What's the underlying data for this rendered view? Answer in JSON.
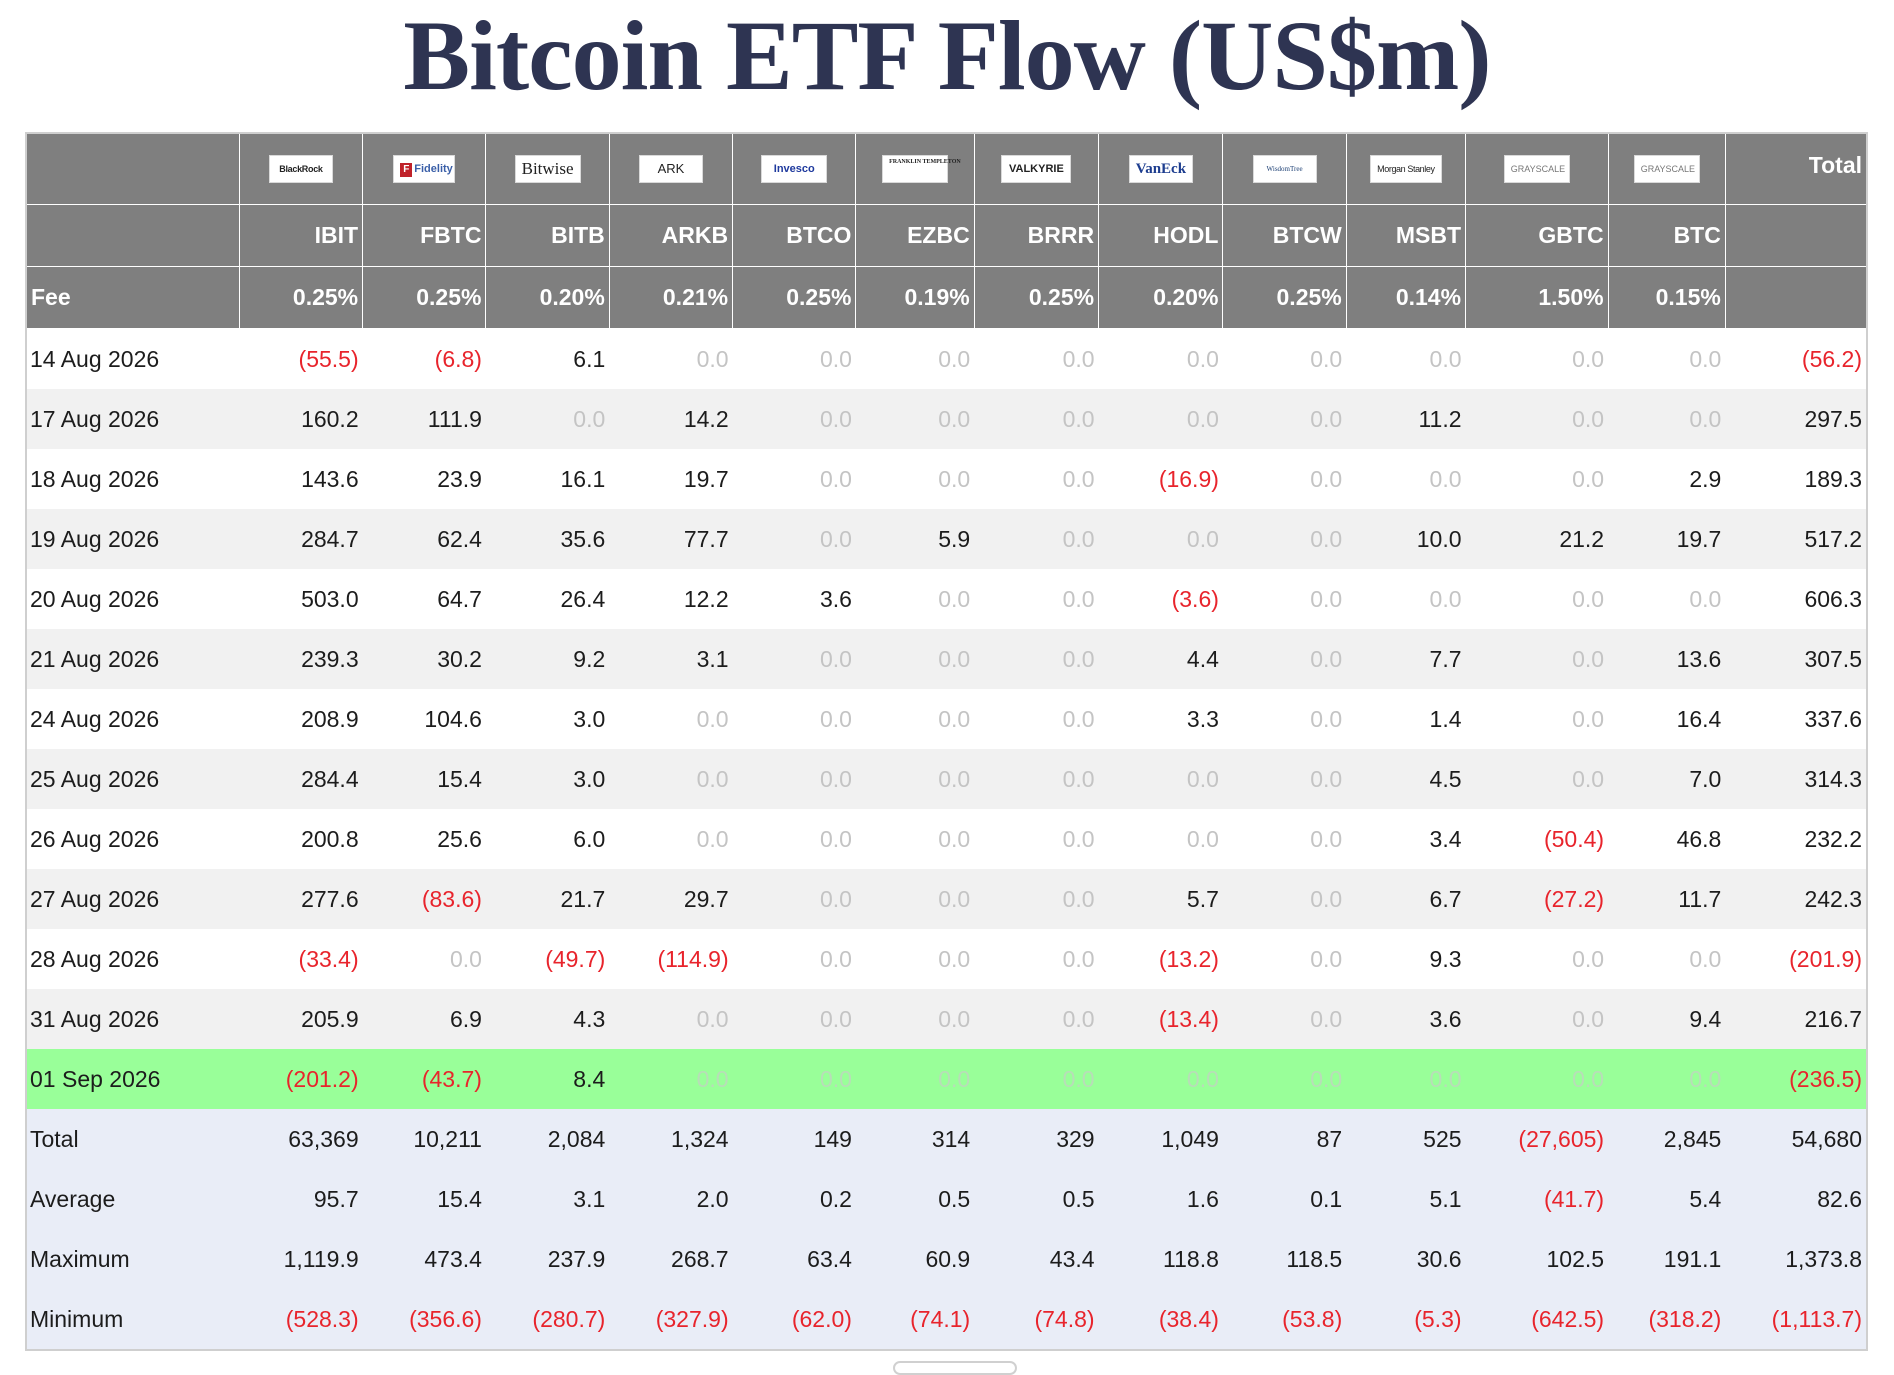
{
  "title": "Bitcoin ETF Flow (US$m)",
  "header": {
    "logos": [
      {
        "key": "blackrock",
        "label": "BlackRock",
        "icon": "blackrock-logo"
      },
      {
        "key": "fidelity",
        "label": "Fidelity",
        "icon": "fidelity-logo"
      },
      {
        "key": "bitwise",
        "label": "Bitwise",
        "icon": "bitwise-logo"
      },
      {
        "key": "ark",
        "label": "ARK",
        "icon": "ark-logo"
      },
      {
        "key": "invesco",
        "label": "Invesco",
        "icon": "invesco-logo"
      },
      {
        "key": "franklin",
        "label": "FRANKLIN TEMPLETON",
        "icon": "franklin-logo"
      },
      {
        "key": "valkyrie",
        "label": "VALKYRIE",
        "icon": "valkyrie-logo"
      },
      {
        "key": "vaneck",
        "label": "VanEck",
        "icon": "vaneck-logo"
      },
      {
        "key": "wisdom",
        "label": "WisdomTree",
        "icon": "wisdomtree-logo"
      },
      {
        "key": "morgan",
        "label": "Morgan Stanley",
        "icon": "morganstanley-logo"
      },
      {
        "key": "grayscale",
        "label": "GRAYSCALE",
        "icon": "grayscale-logo"
      },
      {
        "key": "grayscale",
        "label": "GRAYSCALE",
        "icon": "grayscale-logo"
      }
    ],
    "total_label": "Total",
    "tickers": [
      "IBIT",
      "FBTC",
      "BITB",
      "ARKB",
      "BTCO",
      "EZBC",
      "BRRR",
      "HODL",
      "BTCW",
      "MSBT",
      "GBTC",
      "BTC"
    ],
    "fee_label": "Fee",
    "fees": [
      "0.25%",
      "0.25%",
      "0.20%",
      "0.21%",
      "0.25%",
      "0.19%",
      "0.25%",
      "0.20%",
      "0.25%",
      "0.14%",
      "1.50%",
      "0.15%"
    ]
  },
  "rows": [
    {
      "date": "14 Aug 2026",
      "values": [
        "(55.5)",
        "(6.8)",
        "6.1",
        "0.0",
        "0.0",
        "0.0",
        "0.0",
        "0.0",
        "0.0",
        "0.0",
        "0.0",
        "0.0"
      ],
      "total": "(56.2)"
    },
    {
      "date": "17 Aug 2026",
      "values": [
        "160.2",
        "111.9",
        "0.0",
        "14.2",
        "0.0",
        "0.0",
        "0.0",
        "0.0",
        "0.0",
        "11.2",
        "0.0",
        "0.0"
      ],
      "total": "297.5"
    },
    {
      "date": "18 Aug 2026",
      "values": [
        "143.6",
        "23.9",
        "16.1",
        "19.7",
        "0.0",
        "0.0",
        "0.0",
        "(16.9)",
        "0.0",
        "0.0",
        "0.0",
        "2.9"
      ],
      "total": "189.3"
    },
    {
      "date": "19 Aug 2026",
      "values": [
        "284.7",
        "62.4",
        "35.6",
        "77.7",
        "0.0",
        "5.9",
        "0.0",
        "0.0",
        "0.0",
        "10.0",
        "21.2",
        "19.7"
      ],
      "total": "517.2"
    },
    {
      "date": "20 Aug 2026",
      "values": [
        "503.0",
        "64.7",
        "26.4",
        "12.2",
        "3.6",
        "0.0",
        "0.0",
        "(3.6)",
        "0.0",
        "0.0",
        "0.0",
        "0.0"
      ],
      "total": "606.3"
    },
    {
      "date": "21 Aug 2026",
      "values": [
        "239.3",
        "30.2",
        "9.2",
        "3.1",
        "0.0",
        "0.0",
        "0.0",
        "4.4",
        "0.0",
        "7.7",
        "0.0",
        "13.6"
      ],
      "total": "307.5"
    },
    {
      "date": "24 Aug 2026",
      "values": [
        "208.9",
        "104.6",
        "3.0",
        "0.0",
        "0.0",
        "0.0",
        "0.0",
        "3.3",
        "0.0",
        "1.4",
        "0.0",
        "16.4"
      ],
      "total": "337.6"
    },
    {
      "date": "25 Aug 2026",
      "values": [
        "284.4",
        "15.4",
        "3.0",
        "0.0",
        "0.0",
        "0.0",
        "0.0",
        "0.0",
        "0.0",
        "4.5",
        "0.0",
        "7.0"
      ],
      "total": "314.3"
    },
    {
      "date": "26 Aug 2026",
      "values": [
        "200.8",
        "25.6",
        "6.0",
        "0.0",
        "0.0",
        "0.0",
        "0.0",
        "0.0",
        "0.0",
        "3.4",
        "(50.4)",
        "46.8"
      ],
      "total": "232.2"
    },
    {
      "date": "27 Aug 2026",
      "values": [
        "277.6",
        "(83.6)",
        "21.7",
        "29.7",
        "0.0",
        "0.0",
        "0.0",
        "5.7",
        "0.0",
        "6.7",
        "(27.2)",
        "11.7"
      ],
      "total": "242.3"
    },
    {
      "date": "28 Aug 2026",
      "values": [
        "(33.4)",
        "0.0",
        "(49.7)",
        "(114.9)",
        "0.0",
        "0.0",
        "0.0",
        "(13.2)",
        "0.0",
        "9.3",
        "0.0",
        "0.0"
      ],
      "total": "(201.9)"
    },
    {
      "date": "31 Aug 2026",
      "values": [
        "205.9",
        "6.9",
        "4.3",
        "0.0",
        "0.0",
        "0.0",
        "0.0",
        "(13.4)",
        "0.0",
        "3.6",
        "0.0",
        "9.4"
      ],
      "total": "216.7"
    },
    {
      "date": "01 Sep 2026",
      "values": [
        "(201.2)",
        "(43.7)",
        "8.4",
        "0.0",
        "0.0",
        "0.0",
        "0.0",
        "0.0",
        "0.0",
        "0.0",
        "0.0",
        "0.0"
      ],
      "total": "(236.5)",
      "highlight": true
    }
  ],
  "summary": [
    {
      "label": "Total",
      "values": [
        "63,369",
        "10,211",
        "2,084",
        "1,324",
        "149",
        "314",
        "329",
        "1,049",
        "87",
        "525",
        "(27,605)",
        "2,845"
      ],
      "total": "54,680"
    },
    {
      "label": "Average",
      "values": [
        "95.7",
        "15.4",
        "3.1",
        "2.0",
        "0.2",
        "0.5",
        "0.5",
        "1.6",
        "0.1",
        "5.1",
        "(41.7)",
        "5.4"
      ],
      "total": "82.6"
    },
    {
      "label": "Maximum",
      "values": [
        "1,119.9",
        "473.4",
        "237.9",
        "268.7",
        "63.4",
        "60.9",
        "43.4",
        "118.8",
        "118.5",
        "30.6",
        "102.5",
        "191.1"
      ],
      "total": "1,373.8"
    },
    {
      "label": "Minimum",
      "values": [
        "(528.3)",
        "(356.6)",
        "(280.7)",
        "(327.9)",
        "(62.0)",
        "(74.1)",
        "(74.8)",
        "(38.4)",
        "(53.8)",
        "(5.3)",
        "(642.5)",
        "(318.2)"
      ],
      "total": "(1,113.7)"
    }
  ],
  "colors": {
    "header_bg": "#7f7f7f",
    "negative": "#e8242c",
    "zero": "#c4c4c4",
    "highlight": "#99ff99",
    "summary_bg": "#e9edf7",
    "title": "#2e3452"
  }
}
